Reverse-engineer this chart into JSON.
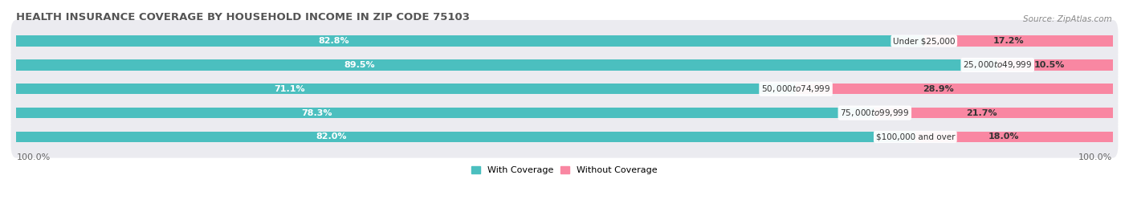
{
  "title": "HEALTH INSURANCE COVERAGE BY HOUSEHOLD INCOME IN ZIP CODE 75103",
  "source": "Source: ZipAtlas.com",
  "categories": [
    "Under $25,000",
    "$25,000 to $49,999",
    "$50,000 to $74,999",
    "$75,000 to $99,999",
    "$100,000 and over"
  ],
  "with_coverage": [
    82.8,
    89.5,
    71.1,
    78.3,
    82.0
  ],
  "without_coverage": [
    17.2,
    10.5,
    28.9,
    21.7,
    18.0
  ],
  "color_coverage": "#4bbfbf",
  "color_nocoverage": "#f987a2",
  "color_coverage_light": "#7fd4d4",
  "bg_row_color": "#ebebf0",
  "title_fontsize": 9.5,
  "source_fontsize": 7.5,
  "bar_label_fontsize": 8,
  "category_fontsize": 7.5,
  "legend_fontsize": 8,
  "axis_label_fontsize": 8,
  "x_left_label": "100.0%",
  "x_right_label": "100.0%"
}
